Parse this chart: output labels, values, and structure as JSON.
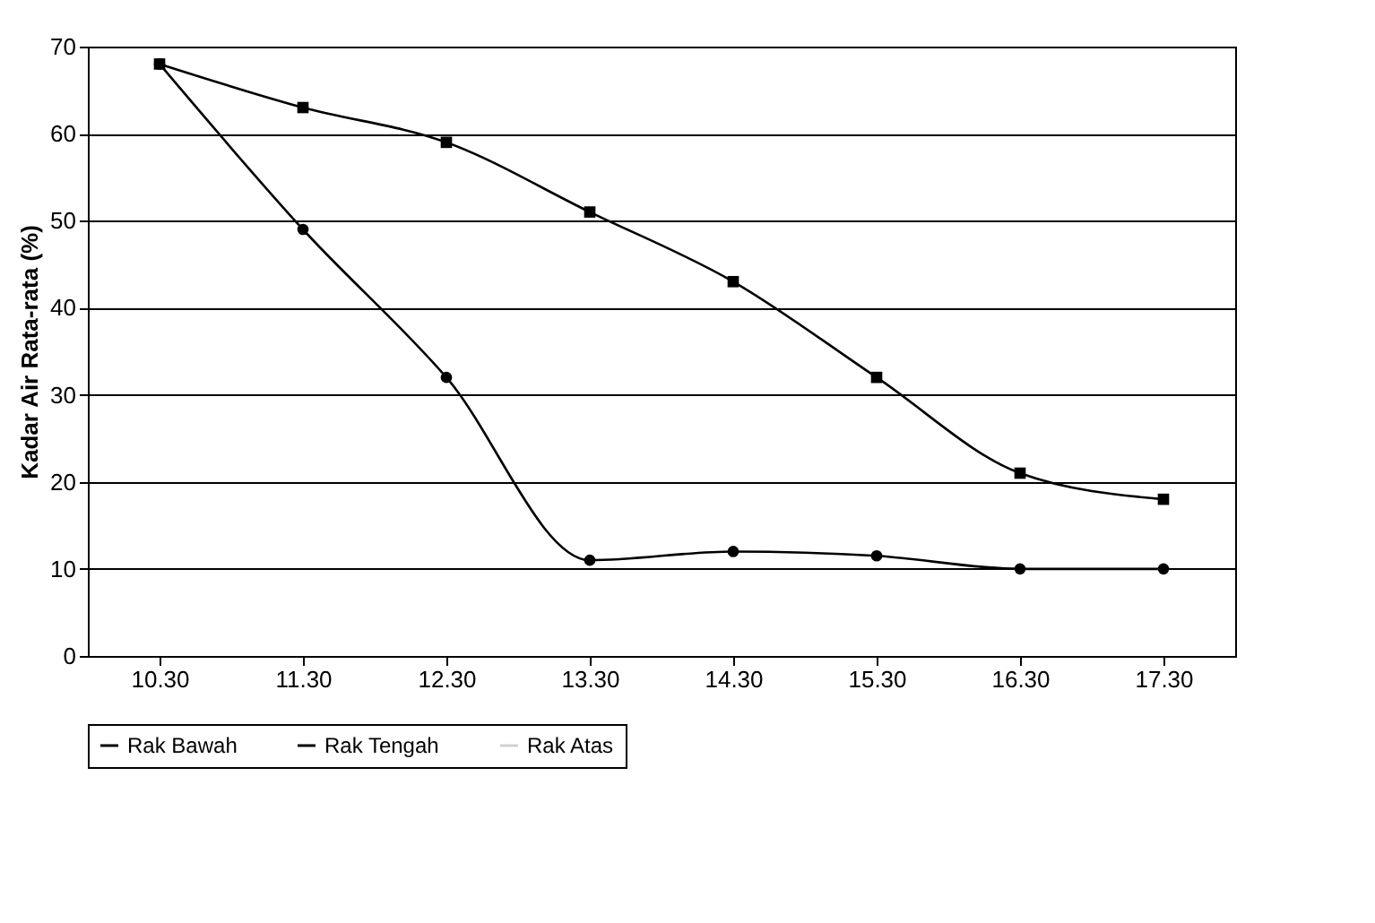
{
  "chart_data": {
    "type": "line",
    "ylabel": "Kadar Air Rata-rata (%)",
    "categories": [
      "10.30",
      "11.30",
      "12.30",
      "13.30",
      "14.30",
      "15.30",
      "16.30",
      "17.30"
    ],
    "series": [
      {
        "name": "Rak Bawah",
        "color": "#000000",
        "marker": "circle",
        "values": [
          68,
          49,
          32,
          11,
          12,
          11.5,
          10,
          10
        ]
      },
      {
        "name": "Rak Tengah",
        "color": "#000000",
        "marker": "square",
        "values": [
          68,
          63,
          59,
          51,
          43,
          32,
          21,
          18
        ]
      },
      {
        "name": "Rak Atas",
        "color": "#d0d0d0",
        "values": [
          null,
          null,
          null,
          null,
          null,
          null,
          null,
          null
        ]
      }
    ],
    "ylim": [
      0,
      70
    ],
    "yticks": [
      0,
      10,
      20,
      30,
      40,
      50,
      60,
      70
    ],
    "grid": "y",
    "legend": "bottom",
    "line_style": "solid"
  }
}
